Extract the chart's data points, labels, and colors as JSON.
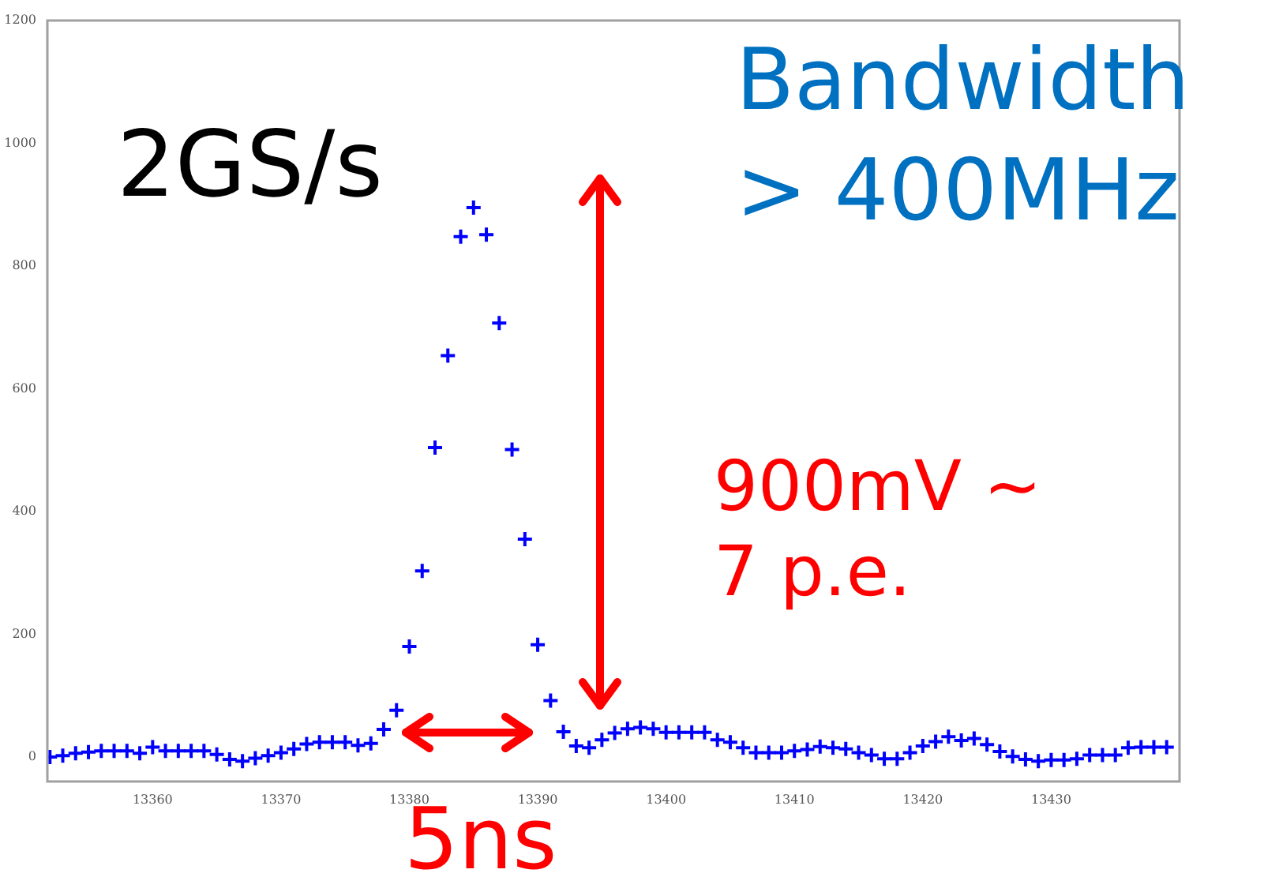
{
  "chart_data": {
    "type": "scatter",
    "marker": "cross",
    "legend": false,
    "x": [
      13352,
      13353,
      13354,
      13355,
      13356,
      13357,
      13358,
      13359,
      13360,
      13361,
      13362,
      13363,
      13364,
      13365,
      13366,
      13367,
      13368,
      13369,
      13370,
      13371,
      13372,
      13373,
      13374,
      13375,
      13376,
      13377,
      13378,
      13379,
      13380,
      13381,
      13382,
      13383,
      13384,
      13385,
      13386,
      13387,
      13388,
      13389,
      13390,
      13391,
      13392,
      13393,
      13394,
      13395,
      13396,
      13397,
      13398,
      13399,
      13400,
      13401,
      13402,
      13403,
      13404,
      13405,
      13406,
      13407,
      13408,
      13409,
      13410,
      13411,
      13412,
      13413,
      13414,
      13415,
      13416,
      13417,
      13418,
      13419,
      13420,
      13421,
      13422,
      13423,
      13424,
      13425,
      13426,
      13427,
      13428,
      13429,
      13430,
      13431,
      13432,
      13433,
      13434,
      13435,
      13436,
      13437,
      13438,
      13439
    ],
    "series": [
      {
        "color": "#0000ff",
        "values": [
          0,
          2,
          6,
          8,
          10,
          10,
          10,
          6,
          16,
          10,
          10,
          10,
          10,
          4,
          -4,
          -7,
          -2,
          2,
          7,
          13,
          21,
          24,
          24,
          24,
          19,
          22,
          45,
          76,
          180,
          303,
          504,
          654,
          848,
          895,
          851,
          707,
          501,
          355,
          183,
          92,
          41,
          18,
          15,
          28,
          39,
          46,
          48,
          46,
          40,
          40,
          40,
          40,
          28,
          24,
          15,
          7,
          7,
          7,
          10,
          12,
          17,
          15,
          13,
          7,
          3,
          -3,
          -3,
          7,
          18,
          25,
          33,
          27,
          30,
          20,
          9,
          1,
          -4,
          -7,
          -5,
          -5,
          -3,
          3,
          3,
          3,
          15,
          16,
          16,
          16
        ]
      }
    ],
    "xlim": [
      13351.8,
      13440
    ],
    "xticks": [
      13360,
      13370,
      13380,
      13390,
      13400,
      13410,
      13420,
      13430
    ],
    "ylim": [
      -40,
      1200
    ],
    "yticks": [
      0,
      200,
      400,
      600,
      800,
      1000,
      1200
    ],
    "annotations": [
      "2GS/s",
      "Bandwidth > 400MHz",
      "900mV ~ 7 p.e.",
      "5ns"
    ]
  }
}
